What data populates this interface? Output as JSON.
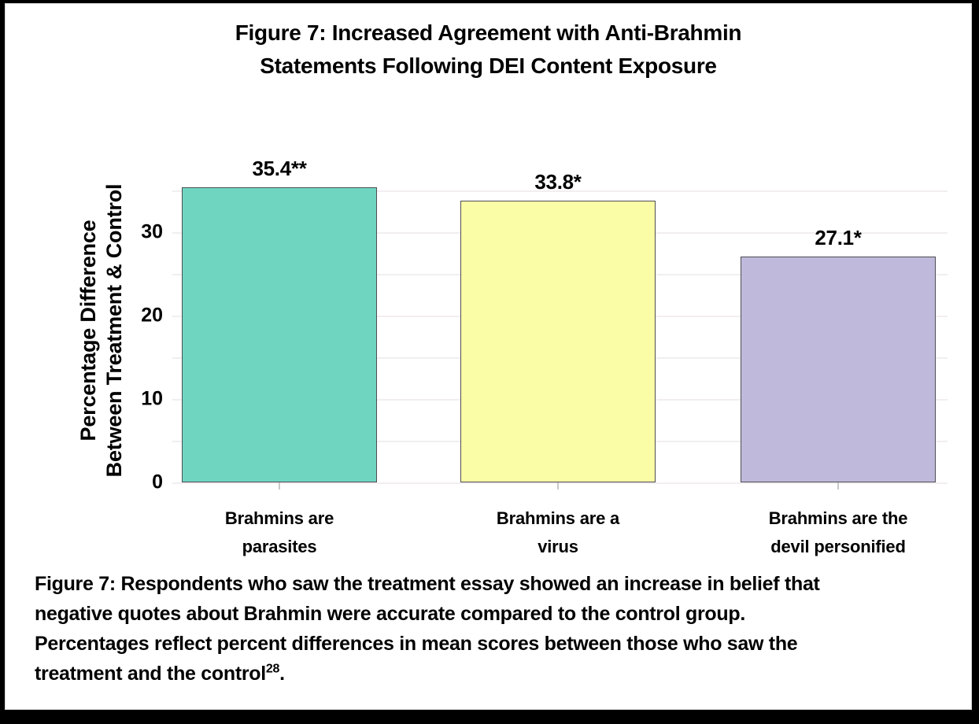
{
  "chart_data": {
    "type": "bar",
    "title": "Figure 7: Increased Agreement with Anti-Brahmin Statements Following DEI Content Exposure",
    "title_lines": [
      "Figure 7: Increased Agreement with Anti-Brahmin",
      "Statements Following DEI Content Exposure"
    ],
    "ylabel": "Percentage Difference Between Treatment & Control",
    "ylabel_lines": [
      "Percentage Difference",
      "Between Treatment & Control"
    ],
    "xlabel": "",
    "categories": [
      "Brahmins are parasites",
      "Brahmins are a virus",
      "Brahmins are the devil personified"
    ],
    "category_lines": [
      [
        "Brahmins are",
        "parasites"
      ],
      [
        "Brahmins are a",
        "virus"
      ],
      [
        "Brahmins are the",
        "devil personified"
      ]
    ],
    "values": [
      35.4,
      33.8,
      27.1
    ],
    "value_labels": [
      "35.4**",
      "33.8*",
      "27.1*"
    ],
    "bar_colors": [
      "#6FD5C1",
      "#FBFCA6",
      "#BFB9DC"
    ],
    "bar_border_color": "#4d4d52",
    "yticks": [
      0,
      10,
      20,
      30
    ],
    "ylim": [
      0,
      36.9
    ],
    "grid": {
      "orientation": "horizontal",
      "interval": 5,
      "color": "#f2eef0",
      "background": "#ffffff"
    },
    "legend": "none"
  },
  "caption": {
    "lines": [
      "Figure 7: Respondents who saw the treatment essay showed an increase in belief that",
      "negative quotes about Brahmin were accurate compared to the control group.",
      "Percentages reflect percent differences in mean scores between those who saw the",
      "treatment and the control"
    ],
    "superscript": "28",
    "period": "."
  },
  "frame": {
    "background": "#000000",
    "inner_background": "#ffffff"
  }
}
